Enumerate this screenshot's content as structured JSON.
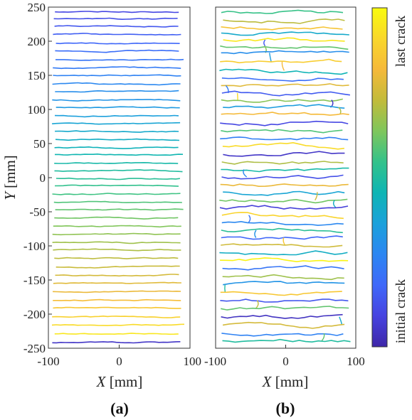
{
  "chart_data": [
    {
      "type": "line",
      "panel_label": "(a)",
      "xlabel_var": "X",
      "xlabel_unit": "[mm]",
      "ylabel_var": "Y",
      "ylabel_unit": "[mm]",
      "xlim": [
        -100,
        100
      ],
      "ylim": [
        -250,
        250
      ],
      "xticks": [
        -100,
        0,
        100
      ],
      "yticks": [
        250,
        200,
        150,
        100,
        50,
        0,
        -50,
        -100,
        -150,
        -200,
        -250
      ],
      "description_series": "horizontal crack traces; color encodes crack order (0 = initial crack, 1 = last crack)",
      "crack_y_positions_mm": [
        243,
        233,
        222,
        210,
        197,
        186,
        173,
        161,
        150,
        137,
        126,
        114,
        103,
        91,
        79,
        68,
        56,
        44,
        34,
        21,
        10,
        -1,
        -12,
        -24,
        -36,
        -47,
        -59,
        -71,
        -83,
        -95,
        -106,
        -118,
        -131,
        -143,
        -155,
        -167,
        -180,
        -191,
        -204,
        -216,
        -229,
        -242
      ],
      "crack_order": [
        0.1,
        0.12,
        0.14,
        0.16,
        0.18,
        0.2,
        0.22,
        0.24,
        0.26,
        0.28,
        0.3,
        0.32,
        0.34,
        0.36,
        0.38,
        0.4,
        0.42,
        0.44,
        0.46,
        0.48,
        0.5,
        0.52,
        0.54,
        0.56,
        0.58,
        0.6,
        0.62,
        0.64,
        0.66,
        0.68,
        0.7,
        0.72,
        0.74,
        0.76,
        0.78,
        0.8,
        0.83,
        0.86,
        0.89,
        0.92,
        0.95,
        0.05
      ],
      "x_range_mm": [
        -92,
        90
      ]
    },
    {
      "type": "line",
      "panel_label": "(b)",
      "xlabel_var": "X",
      "xlabel_unit": "[mm]",
      "xlim": [
        -100,
        100
      ],
      "ylim": [
        -250,
        250
      ],
      "xticks": [
        -100,
        0,
        100
      ],
      "description_series": "irregular crack traces; color encodes crack order (0 = initial crack, 1 = last crack)",
      "crack_y_positions_mm": [
        242,
        231,
        221,
        212,
        202,
        193,
        183,
        170,
        157,
        146,
        135,
        124,
        114,
        103,
        93,
        80,
        69,
        57,
        46,
        34,
        23,
        12,
        1,
        -10,
        -21,
        -33,
        -44,
        -55,
        -66,
        -77,
        -88,
        -99,
        -110,
        -121,
        -133,
        -145,
        -157,
        -168,
        -180,
        -192,
        -204,
        -216,
        -228,
        -239
      ],
      "crack_order": [
        0.55,
        0.72,
        0.85,
        0.4,
        0.95,
        0.6,
        0.3,
        0.88,
        0.45,
        0.2,
        0.78,
        0.15,
        0.65,
        0.35,
        0.82,
        0.1,
        0.58,
        0.25,
        0.92,
        0.05,
        0.7,
        0.48,
        0.12,
        0.8,
        0.38,
        0.62,
        0.08,
        0.9,
        0.28,
        0.52,
        0.18,
        0.75,
        0.42,
        0.98,
        0.22,
        0.68,
        0.32,
        0.86,
        0.14,
        0.6,
        0.04,
        0.76,
        0.26,
        0.5
      ],
      "x_range_mm": [
        -92,
        90
      ]
    }
  ],
  "colorbar": {
    "top_label": "last crack",
    "bottom_label": "initial crack",
    "colormap": [
      "#3e26a8",
      "#4743e0",
      "#3f68f9",
      "#2c86f2",
      "#1ba1db",
      "#0eb5b4",
      "#33c28a",
      "#7fc65c",
      "#c2bb3b",
      "#f5b93a",
      "#f9d72b",
      "#f9fb0e"
    ]
  }
}
